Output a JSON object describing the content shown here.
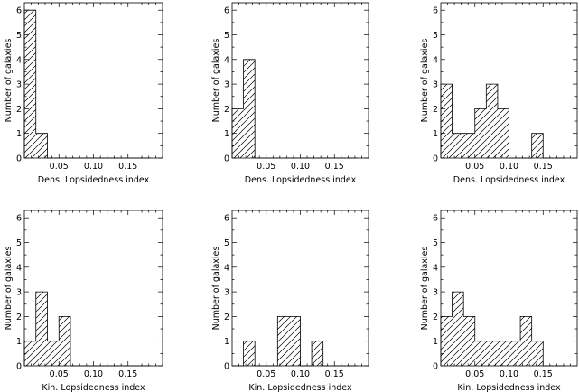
{
  "chart_data": [
    {
      "type": "bar",
      "style": "step-histogram-hatched",
      "xlabel": "Dens. Lopsidedness index",
      "ylabel": "Number of galaxies",
      "xlim": [
        0.0,
        0.2
      ],
      "ylim": [
        0,
        6.3
      ],
      "xticks": [
        "0.05",
        "0.10",
        "0.15"
      ],
      "yticks": [
        "0",
        "1",
        "2",
        "3",
        "4",
        "5",
        "6"
      ],
      "bin_width": 0.0167,
      "bins": [
        0.0083,
        0.025,
        0.0417,
        0.0583,
        0.075,
        0.0917,
        0.1083,
        0.125,
        0.1417,
        0.1583,
        0.175
      ],
      "values": [
        6,
        1,
        0,
        0,
        0,
        0,
        0,
        0,
        0,
        0,
        0
      ]
    },
    {
      "type": "bar",
      "style": "step-histogram-hatched",
      "xlabel": "Dens. Lopsidedness index",
      "ylabel": "Number of galaxies",
      "xlim": [
        0.0,
        0.2
      ],
      "ylim": [
        0,
        6.3
      ],
      "xticks": [
        "0.05",
        "0.10",
        "0.15"
      ],
      "yticks": [
        "0",
        "1",
        "2",
        "3",
        "4",
        "5",
        "6"
      ],
      "bin_width": 0.0167,
      "bins": [
        0.0083,
        0.025,
        0.0417,
        0.0583,
        0.075,
        0.0917,
        0.1083,
        0.125,
        0.1417,
        0.1583,
        0.175
      ],
      "values": [
        2,
        4,
        0,
        0,
        0,
        0,
        0,
        0,
        0,
        0,
        0
      ]
    },
    {
      "type": "bar",
      "style": "step-histogram-hatched",
      "xlabel": "Dens. Lopsidedness index",
      "ylabel": "Number of galaxies",
      "xlim": [
        0.0,
        0.2
      ],
      "ylim": [
        0,
        6.3
      ],
      "xticks": [
        "0.05",
        "0.10",
        "0.15"
      ],
      "yticks": [
        "0",
        "1",
        "2",
        "3",
        "4",
        "5",
        "6"
      ],
      "bin_width": 0.0167,
      "bins": [
        0.0083,
        0.025,
        0.0417,
        0.0583,
        0.075,
        0.0917,
        0.1083,
        0.125,
        0.1417,
        0.1583,
        0.175
      ],
      "values": [
        3,
        1,
        1,
        2,
        3,
        2,
        0,
        0,
        1,
        0,
        0
      ]
    },
    {
      "type": "bar",
      "style": "step-histogram-hatched",
      "xlabel": "Kin. Lopsidedness index",
      "ylabel": "Number of galaxies",
      "xlim": [
        0.0,
        0.2
      ],
      "ylim": [
        0,
        6.3
      ],
      "xticks": [
        "0.05",
        "0.10",
        "0.15"
      ],
      "yticks": [
        "0",
        "1",
        "2",
        "3",
        "4",
        "5",
        "6"
      ],
      "bin_width": 0.0167,
      "bins": [
        0.0083,
        0.025,
        0.0417,
        0.0583,
        0.075,
        0.0917,
        0.1083,
        0.125,
        0.1417,
        0.1583,
        0.175
      ],
      "values": [
        1,
        3,
        1,
        2,
        0,
        0,
        0,
        0,
        0,
        0,
        0
      ]
    },
    {
      "type": "bar",
      "style": "step-histogram-hatched",
      "xlabel": "Kin. Lopsidedness index",
      "ylabel": "Number of galaxies",
      "xlim": [
        0.0,
        0.2
      ],
      "ylim": [
        0,
        6.3
      ],
      "xticks": [
        "0.05",
        "0.10",
        "0.15"
      ],
      "yticks": [
        "0",
        "1",
        "2",
        "3",
        "4",
        "5",
        "6"
      ],
      "bin_width": 0.0167,
      "bins": [
        0.0083,
        0.025,
        0.0417,
        0.0583,
        0.075,
        0.0917,
        0.1083,
        0.125,
        0.1417,
        0.1583,
        0.175
      ],
      "values": [
        0,
        1,
        0,
        0,
        2,
        2,
        0,
        1,
        0,
        0,
        0
      ]
    },
    {
      "type": "bar",
      "style": "step-histogram-hatched",
      "xlabel": "Kin. Lopsidedness index",
      "ylabel": "Number of galaxies",
      "xlim": [
        0.0,
        0.2
      ],
      "ylim": [
        0,
        6.3
      ],
      "xticks": [
        "0.05",
        "0.10",
        "0.15"
      ],
      "yticks": [
        "0",
        "1",
        "2",
        "3",
        "4",
        "5",
        "6"
      ],
      "bin_width": 0.0167,
      "bins": [
        0.0083,
        0.025,
        0.0417,
        0.0583,
        0.075,
        0.0917,
        0.1083,
        0.125,
        0.1417,
        0.1583,
        0.175
      ],
      "values": [
        2,
        3,
        2,
        1,
        1,
        1,
        1,
        2,
        1,
        0,
        0
      ]
    }
  ]
}
